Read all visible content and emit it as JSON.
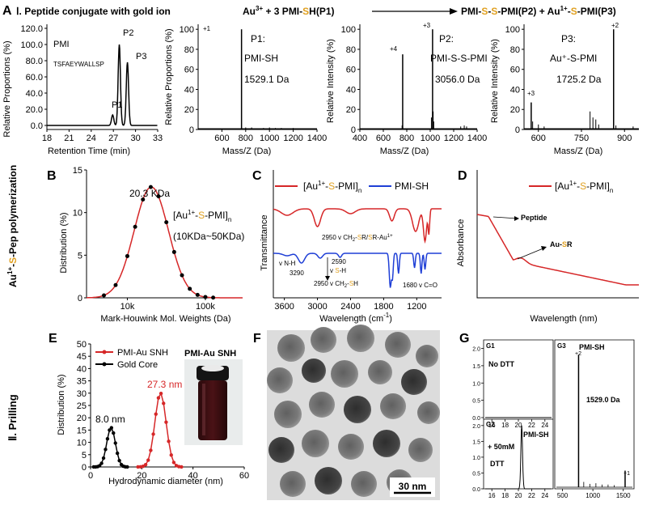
{
  "header": {
    "panel": "A",
    "section_title": "Ⅰ. Peptide conjugate with gold ion",
    "eq_left_a": "Au",
    "eq_left_sup": "3+",
    "eq_left_b": " + 3 PMI-",
    "eq_left_s": "S",
    "eq_left_c": "H(P1)",
    "eq_right_a": "PMI-",
    "eq_right_s1": "S",
    "eq_right_dash": "-",
    "eq_right_s2": "S",
    "eq_right_b": "-PMI(P2) + Au",
    "eq_right_sup": "1+",
    "eq_right_dash2": "-",
    "eq_right_s3": "S",
    "eq_right_c": "-PMI(P3)"
  },
  "side_labels": {
    "row2_a": "Au",
    "row2_sup": "1+",
    "row2_b": "-",
    "row2_s": "S",
    "row2_c": "-Pep polymerization",
    "row3": "Ⅱ. Prilling"
  },
  "colors": {
    "red": "#d62728",
    "blue": "#1f3fd6",
    "gold": "#e0a020",
    "black": "#000000"
  },
  "chart_data": [
    {
      "id": "A1",
      "type": "line",
      "xlabel": "Retention Time (min)",
      "ylabel": "Relative Proportions (%)",
      "xlim": [
        18,
        33
      ],
      "ylim": [
        -5,
        125
      ],
      "xticks": [
        18,
        21,
        24,
        27,
        30,
        33
      ],
      "yticks": [
        0.0,
        20.0,
        40.0,
        60.0,
        80.0,
        100.0,
        120.0
      ],
      "annotations": [
        "PMI",
        "TSFAEYWALLSP",
        "P1",
        "P2",
        "P3"
      ],
      "peaks": [
        {
          "x": 26.9,
          "y": 13
        },
        {
          "x": 27.8,
          "y": 100
        },
        {
          "x": 28.9,
          "y": 78
        }
      ]
    },
    {
      "id": "A2",
      "type": "bar",
      "xlabel": "Mass/Z (Da)",
      "ylabel": "Relative Proportions (%)",
      "xlim": [
        400,
        1400
      ],
      "ylim": [
        0,
        105
      ],
      "xticks": [
        600,
        800,
        1000,
        1200,
        1400
      ],
      "yticks": [
        0,
        20,
        40,
        60,
        80,
        100
      ],
      "annotations": [
        "+1",
        "P1:",
        "PMI-SH",
        "1529.1 Da"
      ],
      "peaks": [
        {
          "x": 765,
          "y": 100
        }
      ]
    },
    {
      "id": "A3",
      "type": "bar",
      "xlabel": "Mass/Z (Da)",
      "ylabel": "Relative Intensity (%)",
      "xlim": [
        400,
        1400
      ],
      "ylim": [
        0,
        105
      ],
      "xticks": [
        400,
        600,
        800,
        1000,
        1200,
        1400
      ],
      "yticks": [
        0,
        20,
        40,
        60,
        80,
        100
      ],
      "annotations": [
        "+4",
        "+3",
        "P2:",
        "PMI-S-S-PMI",
        "3056.0 Da"
      ],
      "peaks": [
        {
          "x": 765,
          "y": 75
        },
        {
          "x": 1020,
          "y": 100
        }
      ]
    },
    {
      "id": "A4",
      "type": "bar",
      "xlabel": "Mass/Z (Da)",
      "ylabel": "Relative Intensity (%)",
      "xlim": [
        550,
        950
      ],
      "ylim": [
        0,
        105
      ],
      "xticks": [
        600,
        750,
        900
      ],
      "yticks": [
        0,
        20,
        40,
        60,
        80,
        100
      ],
      "annotations": [
        "+3",
        "+2",
        "P3:",
        "Au⁺-S-PMI",
        "1725.2 Da"
      ],
      "peaks": [
        {
          "x": 575,
          "y": 27
        },
        {
          "x": 862,
          "y": 100
        }
      ]
    },
    {
      "id": "B",
      "type": "scatter",
      "xlabel": "Mark-Houwink Mol. Weights (Da)",
      "ylabel": "Distribution (%)",
      "xscale": "log",
      "xlim": [
        3000,
        300000
      ],
      "ylim": [
        0,
        15
      ],
      "xticks": [
        "10k",
        "100k"
      ],
      "yticks": [
        0,
        5,
        10,
        15
      ],
      "annotations": [
        "20.3 KDa",
        "[Au",
        "1+",
        "-",
        "S",
        "-PMI]",
        "n",
        "(10KDa~50KDa)"
      ],
      "fit_peak": {
        "x": 20300,
        "y": 13
      }
    },
    {
      "id": "C",
      "type": "line",
      "xlabel": "Wavelength (cm",
      "xlabel_sup": "-1",
      "xlabel_end": ")",
      "ylabel": "Transmittance",
      "xlim": [
        3800,
        750
      ],
      "xticks": [
        3600,
        3000,
        2400,
        1800,
        1200
      ],
      "legend": [
        "[Au",
        "1+",
        "-",
        "S",
        "-PMI]",
        "n",
        "PMI-SH"
      ],
      "annotations": [
        "2950 v CH",
        "2",
        "-",
        "S",
        "R/",
        "S",
        "R-Au",
        "1+",
        "v N-H",
        "3290",
        "2590",
        "v ",
        "S",
        "-H",
        "2950 v CH",
        "2",
        "-",
        "S",
        "H",
        "1680 v C=O"
      ]
    },
    {
      "id": "D",
      "type": "line",
      "xlabel": "Wavelength (nm)",
      "ylabel": "Absorbance",
      "xlim": [
        250,
        600
      ],
      "xticks": [
        300,
        400,
        500,
        600
      ],
      "legend": [
        "[Au",
        "1+",
        "-",
        "S",
        "-PMI]",
        "n"
      ],
      "annotations": [
        "Peptide",
        "Au-",
        "S",
        "R"
      ]
    },
    {
      "id": "E",
      "type": "line",
      "xlabel": "Hydrodynamic diameter (nm)",
      "ylabel": "Distribution (%)",
      "xlim": [
        0,
        60
      ],
      "ylim": [
        0,
        50
      ],
      "xticks": [
        0,
        20,
        40,
        60
      ],
      "yticks": [
        0,
        5,
        10,
        15,
        20,
        25,
        30,
        35,
        40,
        45,
        50
      ],
      "legend": [
        "PMI-Au SNH",
        "Gold Core"
      ],
      "series": [
        {
          "name": "PMI-Au SNH",
          "peak_x": 27.3,
          "peak_y": 30
        },
        {
          "name": "Gold Core",
          "peak_x": 8.0,
          "peak_y": 16
        }
      ],
      "annotations": [
        "27.3 nm",
        "8.0 nm",
        "PMI-Au SNH"
      ]
    },
    {
      "id": "F",
      "type": "image",
      "annotations": [
        "30 nm"
      ]
    },
    {
      "id": "G",
      "type": "line",
      "panels": [
        "G1",
        "G2",
        "G3"
      ],
      "annotations": [
        "No DTT",
        "+ 50mM",
        "DTT",
        "PMI-SH",
        "PMI-SH",
        "+2",
        "1529.0 Da",
        "+1"
      ],
      "g_left_xticks": [
        16,
        18,
        20,
        22,
        24
      ],
      "g_left_yticks": [
        0.0,
        0.5,
        1.0,
        1.5,
        2.0
      ],
      "g_right_xticks": [
        500,
        1000,
        1500
      ],
      "g_right_yticks": [
        0.0,
        0.5,
        1.0,
        1.5,
        2.0
      ],
      "peaks": [
        {
          "x": 20.5,
          "y": 2.0
        },
        {
          "x": 765,
          "y": 2.0
        },
        {
          "x": 1530,
          "y": 0.25
        }
      ]
    }
  ]
}
